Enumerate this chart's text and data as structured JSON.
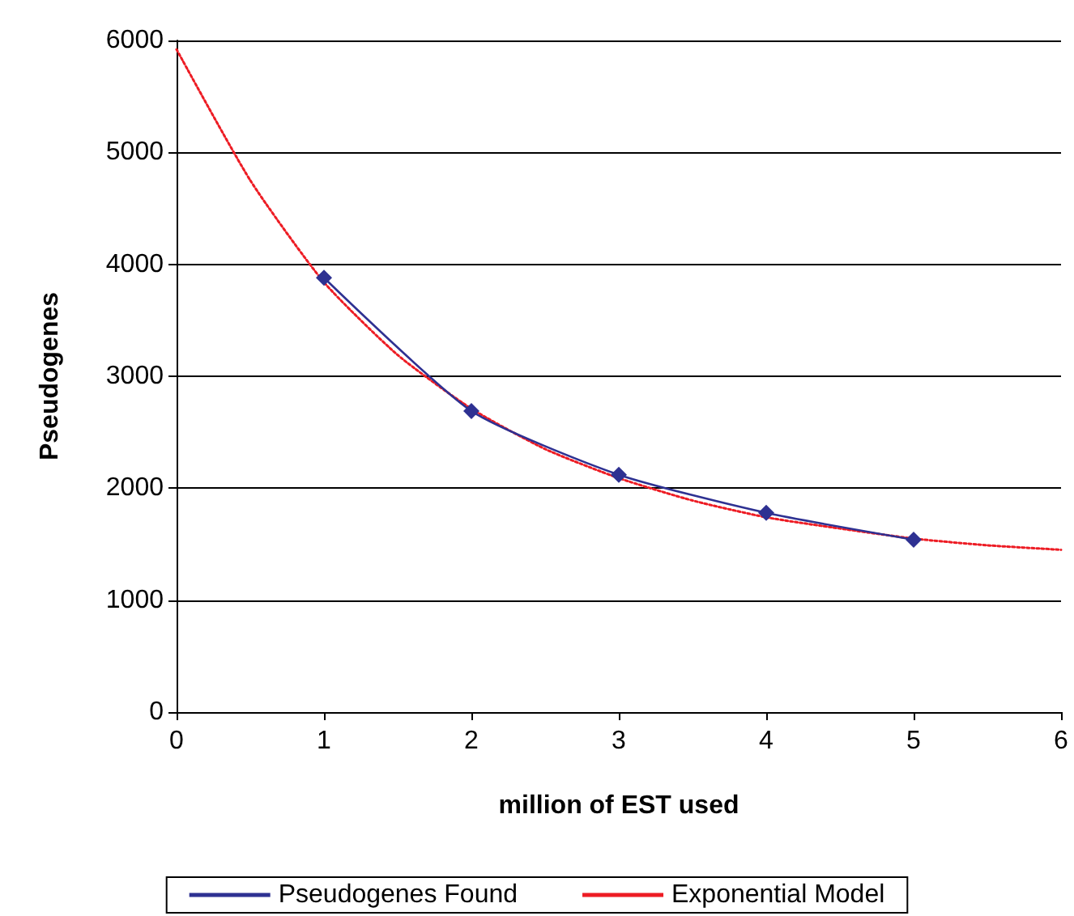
{
  "chart_data": {
    "type": "line",
    "xlabel": "million of EST used",
    "ylabel": "Pseudogenes",
    "xlim": [
      0,
      6
    ],
    "xticks": [
      0,
      1,
      2,
      3,
      4,
      5,
      6
    ],
    "ylim": [
      0,
      6000
    ],
    "yticks": [
      0,
      1000,
      2000,
      3000,
      4000,
      5000,
      6000
    ],
    "grid": "y",
    "legend": "bottom",
    "series": [
      {
        "name": "Pseudogenes Found",
        "color": "#2e3192",
        "marker": "diamond",
        "line_style": "solid",
        "x": [
          1,
          2,
          3,
          4,
          5
        ],
        "values": [
          3880,
          2690,
          2120,
          1780,
          1540
        ]
      },
      {
        "name": "Exponential Model",
        "color": "#ed1c24",
        "marker": "none",
        "line_style": "dotted",
        "x": [
          0,
          0.5,
          1,
          1.5,
          2,
          2.5,
          3,
          3.5,
          4,
          4.5,
          5,
          5.5,
          6
        ],
        "values": [
          5920,
          4750,
          3840,
          3190,
          2710,
          2350,
          2090,
          1890,
          1740,
          1640,
          1550,
          1490,
          1450
        ]
      }
    ]
  }
}
